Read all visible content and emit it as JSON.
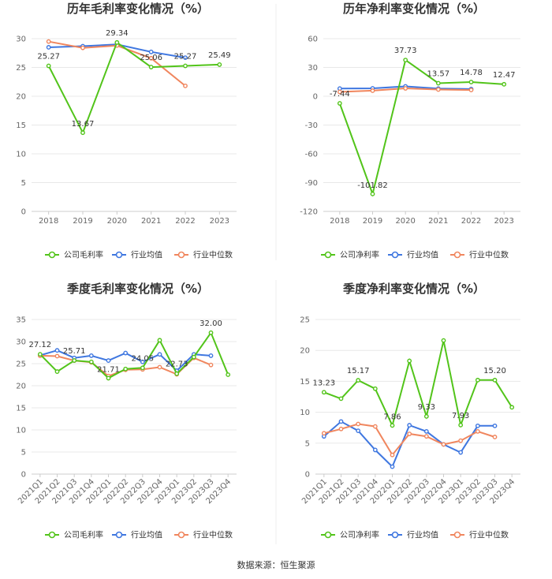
{
  "source_text": "数据来源：恒生聚源",
  "colors": {
    "company": "#52c41a",
    "industry_avg": "#3f77e0",
    "industry_median": "#f0865e"
  },
  "chart_data": [
    {
      "type": "line",
      "title": "历年毛利率变化情况（%）",
      "x": [
        "2018",
        "2019",
        "2020",
        "2021",
        "2022",
        "2023"
      ],
      "ylim": [
        0,
        30
      ],
      "yticks": [
        0,
        5,
        10,
        15,
        20,
        25,
        30
      ],
      "rotate_x": false,
      "series": [
        {
          "name": "公司毛利率",
          "color": "#52c41a",
          "values": [
            25.27,
            13.67,
            29.34,
            25.06,
            25.27,
            25.49
          ]
        },
        {
          "name": "行业均值",
          "color": "#3f77e0",
          "values": [
            28.5,
            28.7,
            29.0,
            27.7,
            26.7,
            null
          ]
        },
        {
          "name": "行业中位数",
          "color": "#f0865e",
          "values": [
            29.5,
            28.4,
            28.8,
            26.6,
            21.8,
            null
          ]
        }
      ],
      "labels": [
        "25.27",
        "13.67",
        "29.34",
        "25.06",
        "25.27",
        "25.49"
      ]
    },
    {
      "type": "line",
      "title": "历年净利率变化情况（%）",
      "x": [
        "2018",
        "2019",
        "2020",
        "2021",
        "2022",
        "2023"
      ],
      "ylim": [
        -120,
        60
      ],
      "yticks": [
        -120,
        -90,
        -60,
        -30,
        0,
        30,
        60
      ],
      "rotate_x": false,
      "series": [
        {
          "name": "公司净利率",
          "color": "#52c41a",
          "values": [
            -7.44,
            -101.82,
            37.73,
            13.57,
            14.78,
            12.47
          ]
        },
        {
          "name": "行业均值",
          "color": "#3f77e0",
          "values": [
            8.0,
            8.2,
            10.3,
            8.0,
            7.5,
            null
          ]
        },
        {
          "name": "行业中位数",
          "color": "#f0865e",
          "values": [
            4.5,
            5.8,
            8.2,
            7.0,
            6.5,
            null
          ]
        }
      ],
      "labels": [
        "-7.44",
        "-101.82",
        "37.73",
        "13.57",
        "14.78",
        "12.47"
      ]
    },
    {
      "type": "line",
      "title": "季度毛利率变化情况（%）",
      "x": [
        "2021Q1",
        "2021Q2",
        "2021Q3",
        "2021Q4",
        "2022Q1",
        "2022Q2",
        "2022Q3",
        "2022Q4",
        "2023Q1",
        "2023Q2",
        "2023Q3",
        "2023Q4"
      ],
      "ylim": [
        0,
        35
      ],
      "yticks": [
        0,
        5,
        10,
        15,
        20,
        25,
        30,
        35
      ],
      "rotate_x": true,
      "series": [
        {
          "name": "公司毛利率",
          "color": "#52c41a",
          "values": [
            27.12,
            23.2,
            25.71,
            25.4,
            21.71,
            23.8,
            24.05,
            30.3,
            22.73,
            26.5,
            32.0,
            22.5
          ]
        },
        {
          "name": "行业均值",
          "color": "#3f77e0",
          "values": [
            26.9,
            28.0,
            26.3,
            26.8,
            25.7,
            27.4,
            25.4,
            27.1,
            23.4,
            27.1,
            26.8,
            null
          ]
        },
        {
          "name": "行业中位数",
          "color": "#f0865e",
          "values": [
            26.8,
            26.7,
            25.7,
            25.3,
            22.2,
            23.6,
            23.7,
            24.2,
            22.6,
            26.3,
            24.7,
            null
          ]
        }
      ],
      "labels": [
        "27.12",
        "",
        "25.71",
        "",
        "21.71",
        "",
        "24.05",
        "",
        "22.73",
        "",
        "32.00",
        ""
      ]
    },
    {
      "type": "line",
      "title": "季度净利率变化情况（%）",
      "x": [
        "2021Q1",
        "2021Q2",
        "2021Q3",
        "2021Q4",
        "2022Q1",
        "2022Q2",
        "2022Q3",
        "2022Q4",
        "2023Q1",
        "2023Q2",
        "2023Q3",
        "2023Q4"
      ],
      "ylim": [
        0,
        25
      ],
      "yticks": [
        0,
        5,
        10,
        15,
        20,
        25
      ],
      "rotate_x": true,
      "series": [
        {
          "name": "公司净利率",
          "color": "#52c41a",
          "values": [
            13.23,
            12.2,
            15.17,
            13.8,
            7.86,
            18.3,
            9.33,
            21.6,
            7.93,
            15.2,
            15.2,
            10.8
          ]
        },
        {
          "name": "行业均值",
          "color": "#3f77e0",
          "values": [
            6.1,
            8.5,
            7.0,
            3.9,
            1.2,
            7.9,
            6.9,
            4.8,
            3.5,
            7.8,
            7.8,
            null
          ]
        },
        {
          "name": "行业中位数",
          "color": "#f0865e",
          "values": [
            6.6,
            7.3,
            8.1,
            7.7,
            3.1,
            6.5,
            6.1,
            4.8,
            5.4,
            6.9,
            6.0,
            null
          ]
        }
      ],
      "labels": [
        "13.23",
        "",
        "15.17",
        "",
        "7.86",
        "",
        "9.33",
        "",
        "7.93",
        "",
        "15.20",
        ""
      ]
    }
  ]
}
